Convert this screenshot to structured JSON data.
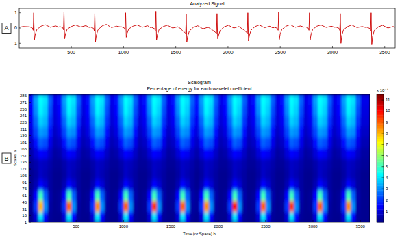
{
  "chart_data": [
    {
      "type": "line",
      "panel_label": "A",
      "title": "Analyzed Signal",
      "color": "#cc0000",
      "xlim": [
        1,
        3600
      ],
      "ylim": [
        -1.3,
        1.3
      ],
      "xticks": [
        500,
        1000,
        1500,
        2000,
        2500,
        3000,
        3500
      ],
      "yticks": [
        -1,
        0,
        1
      ],
      "x": [
        1,
        40,
        100,
        128,
        135,
        140,
        146,
        154,
        170,
        210,
        250,
        300,
        350,
        380,
        390,
        418,
        425,
        430,
        436,
        444,
        460,
        500,
        540,
        590,
        640,
        670,
        685,
        713,
        720,
        725,
        731,
        739,
        755,
        795,
        835,
        885,
        935,
        965,
        980,
        1008,
        1015,
        1020,
        1026,
        1034,
        1050,
        1090,
        1130,
        1180,
        1230,
        1260,
        1270,
        1298,
        1305,
        1310,
        1316,
        1324,
        1340,
        1380,
        1420,
        1470,
        1520,
        1550,
        1560,
        1588,
        1595,
        1600,
        1606,
        1614,
        1630,
        1670,
        1710,
        1760,
        1810,
        1840,
        1855,
        1883,
        1890,
        1895,
        1901,
        1909,
        1925,
        1965,
        2005,
        2055,
        2105,
        2135,
        2150,
        2178,
        2185,
        2190,
        2196,
        2204,
        2220,
        2260,
        2300,
        2350,
        2400,
        2430,
        2445,
        2473,
        2480,
        2485,
        2491,
        2499,
        2515,
        2555,
        2595,
        2645,
        2695,
        2725,
        2740,
        2768,
        2775,
        2780,
        2786,
        2794,
        2810,
        2850,
        2890,
        2940,
        2990,
        3020,
        3035,
        3063,
        3070,
        3075,
        3081,
        3089,
        3105,
        3145,
        3185,
        3235,
        3285,
        3315,
        3330,
        3358,
        3365,
        3370,
        3376,
        3384,
        3400,
        3440,
        3480,
        3530,
        3580,
        3600
      ],
      "values": [
        0.05,
        0.1,
        0.08,
        0.0,
        -0.15,
        1.0,
        -0.8,
        -0.45,
        -0.1,
        0.12,
        0.22,
        0.05,
        0.14,
        0.06,
        0.1,
        0.02,
        -0.12,
        1.05,
        -0.7,
        -0.4,
        -0.08,
        0.1,
        0.2,
        0.07,
        0.16,
        0.04,
        0.06,
        -0.02,
        -0.18,
        0.95,
        -0.9,
        -0.5,
        -0.12,
        0.14,
        0.24,
        0.03,
        0.12,
        0.08,
        0.08,
        0.0,
        -0.14,
        1.0,
        -0.6,
        -0.35,
        -0.06,
        0.12,
        0.2,
        0.05,
        0.15,
        0.02,
        0.04,
        -0.05,
        -0.2,
        1.1,
        -0.8,
        -0.45,
        -0.1,
        0.1,
        0.18,
        0.0,
        0.08,
        -0.05,
        -0.15,
        -0.3,
        -0.35,
        0.9,
        -0.9,
        -0.55,
        -0.2,
        0.05,
        0.15,
        -0.05,
        0.05,
        -0.08,
        -0.15,
        -0.3,
        -0.38,
        0.95,
        -0.7,
        -0.5,
        -0.15,
        0.08,
        0.18,
        0.0,
        0.1,
        -0.05,
        -0.12,
        -0.28,
        -0.35,
        1.0,
        -0.85,
        -0.5,
        -0.15,
        0.1,
        0.2,
        0.02,
        0.12,
        0.0,
        0.05,
        -0.02,
        -0.15,
        1.05,
        -0.75,
        -0.42,
        -0.1,
        0.12,
        0.22,
        0.05,
        0.14,
        0.06,
        0.08,
        0.0,
        -0.15,
        1.0,
        -0.8,
        -0.45,
        -0.1,
        0.12,
        0.2,
        0.04,
        0.12,
        0.05,
        0.06,
        -0.02,
        -0.16,
        0.95,
        -1.0,
        -0.5,
        -0.12,
        0.1,
        0.2,
        0.03,
        0.1,
        0.04,
        0.05,
        -0.03,
        -0.18,
        1.0,
        -1.1,
        -0.55,
        -0.15,
        0.08,
        0.18,
        0.0,
        0.1,
        0.05
      ]
    },
    {
      "type": "heatmap",
      "panel_label": "B",
      "title": "Scalogram",
      "subtitle": "Percentage of energy for each wavelet coefficient",
      "x_label": "Time (or Space) b",
      "y_label": "Scales a",
      "xlim": [
        0,
        3600
      ],
      "ylim": [
        1,
        289
      ],
      "xticks": [
        500,
        1000,
        1500,
        2000,
        2500,
        3000,
        3500
      ],
      "yticks": [
        1,
        16,
        31,
        46,
        61,
        76,
        91,
        106,
        121,
        136,
        151,
        166,
        181,
        196,
        211,
        226,
        241,
        256,
        271,
        286
      ],
      "x": [
        25,
        75,
        125,
        175,
        225,
        275,
        325,
        375,
        425,
        475,
        525,
        575,
        625,
        675,
        725,
        775,
        825,
        875,
        925,
        975,
        1025,
        1075,
        1125,
        1175,
        1225,
        1275,
        1325,
        1375,
        1425,
        1475,
        1525,
        1575,
        1625,
        1675,
        1725,
        1775,
        1825,
        1875,
        1925,
        1975,
        2025,
        2075,
        2125,
        2175,
        2225,
        2275,
        2325,
        2375,
        2425,
        2475,
        2525,
        2575,
        2625,
        2675,
        2725,
        2775,
        2825,
        2875,
        2925,
        2975,
        3025,
        3075,
        3125,
        3175,
        3225,
        3275,
        3325,
        3375,
        3425,
        3475,
        3525,
        3575
      ],
      "y": [
        13,
        37,
        61,
        85,
        109,
        133,
        157,
        181,
        205,
        229,
        253,
        277
      ],
      "cells": [
        [
          0.2,
          1,
          4,
          1.5,
          0.3,
          0.2,
          0.2,
          1,
          4,
          1.5,
          0.3,
          0.2,
          0.2,
          1,
          4,
          1.5,
          0.3,
          0.2,
          0.2,
          1,
          4,
          1.5,
          0.3,
          0.2,
          0.2,
          1,
          4,
          1.5,
          0.3,
          0.2,
          0.2,
          1,
          4,
          1.5,
          0.3,
          0.2,
          1,
          4,
          1.5,
          0.3,
          0.2,
          0.2,
          1,
          4,
          1.5,
          0.3,
          0.2,
          0.2,
          1,
          4,
          1.5,
          0.3,
          0.2,
          0.2,
          1,
          4,
          1.5,
          0.3,
          0.2,
          0.2,
          1,
          4,
          1.5,
          0.3,
          0.2,
          0.2,
          1,
          4,
          1.5,
          0.3,
          0.2,
          0.2
        ],
        [
          0.3,
          2,
          8,
          3,
          0.4,
          0.2,
          0.3,
          2,
          9,
          3,
          0.4,
          0.2,
          0.3,
          2,
          8.5,
          3,
          0.4,
          0.2,
          0.3,
          2,
          9,
          3,
          0.4,
          0.2,
          0.3,
          2,
          9.5,
          3,
          0.4,
          0.2,
          0.3,
          2,
          9,
          3,
          0.4,
          0.3,
          2,
          8.5,
          3,
          0.4,
          0.2,
          0.3,
          2,
          10,
          3,
          0.4,
          0.2,
          0.3,
          2,
          9,
          3,
          0.4,
          0.2,
          0.3,
          2,
          9.5,
          3,
          0.4,
          0.2,
          0.3,
          2,
          9,
          3,
          0.4,
          0.2,
          0.3,
          2,
          8.5,
          3,
          0.4,
          0.2,
          0.2
        ],
        [
          0.3,
          1.5,
          5,
          2.5,
          0.5,
          0.2,
          0.3,
          1.5,
          5,
          2.5,
          0.5,
          0.2,
          0.3,
          1.5,
          5,
          2.5,
          0.5,
          0.2,
          0.3,
          1.5,
          5,
          2.5,
          0.5,
          0.2,
          0.3,
          1.5,
          5,
          2.5,
          0.5,
          0.2,
          0.3,
          1.5,
          5,
          2.5,
          0.5,
          0.3,
          1.5,
          5,
          2.5,
          0.5,
          0.2,
          0.3,
          1.5,
          5,
          2.5,
          0.5,
          0.2,
          0.3,
          1.5,
          5,
          2.5,
          0.5,
          0.2,
          0.3,
          1.5,
          5,
          2.5,
          0.5,
          0.2,
          0.3,
          1.5,
          5,
          2.5,
          0.5,
          0.2,
          0.3,
          1.5,
          5,
          2.5,
          0.5,
          0.2,
          0.2
        ],
        [
          0.2,
          0.6,
          1.5,
          1,
          0.4,
          0.2,
          0.2,
          0.6,
          1.5,
          1,
          0.4,
          0.2,
          0.2,
          0.6,
          1.5,
          1,
          0.4,
          0.2,
          0.2,
          0.6,
          1.5,
          1,
          0.4,
          0.2,
          0.2,
          0.6,
          1.5,
          1,
          0.4,
          0.2,
          0.2,
          0.6,
          1.5,
          1,
          0.4,
          0.2,
          0.6,
          1.5,
          1,
          0.4,
          0.2,
          0.2,
          0.6,
          1.5,
          1,
          0.4,
          0.2,
          0.2,
          0.6,
          1.5,
          1,
          0.4,
          0.2,
          0.2,
          0.6,
          1.5,
          1,
          0.4,
          0.2,
          0.2,
          0.6,
          1.5,
          1,
          0.4,
          0.2,
          0.2,
          0.6,
          1.5,
          1,
          0.4,
          0.2,
          0.2
        ],
        [
          0.2,
          0.4,
          0.8,
          0.6,
          0.4,
          0.2,
          0.2,
          0.4,
          0.8,
          0.6,
          0.4,
          0.2,
          0.2,
          0.4,
          0.8,
          0.6,
          0.4,
          0.2,
          0.2,
          0.4,
          0.8,
          0.6,
          0.4,
          0.2,
          0.2,
          0.4,
          0.8,
          0.6,
          0.4,
          0.2,
          0.2,
          0.4,
          0.8,
          0.6,
          0.4,
          0.2,
          0.4,
          0.8,
          0.6,
          0.4,
          0.2,
          0.2,
          0.4,
          0.8,
          0.6,
          0.4,
          0.2,
          0.2,
          0.4,
          0.8,
          0.6,
          0.4,
          0.2,
          0.2,
          0.4,
          0.8,
          0.6,
          0.4,
          0.2,
          0.2,
          0.4,
          0.8,
          0.6,
          0.4,
          0.2,
          0.2,
          0.4,
          0.8,
          0.6,
          0.4,
          0.2,
          0.2
        ],
        [
          0.3,
          0.5,
          0.8,
          0.7,
          0.5,
          0.3,
          0.3,
          0.5,
          0.8,
          0.7,
          0.5,
          0.3,
          0.3,
          0.5,
          0.8,
          0.7,
          0.5,
          0.3,
          0.3,
          0.5,
          0.8,
          0.7,
          0.5,
          0.3,
          0.3,
          0.5,
          0.8,
          0.7,
          0.5,
          0.3,
          0.3,
          0.5,
          0.8,
          0.7,
          0.5,
          0.3,
          0.5,
          0.8,
          0.7,
          0.5,
          0.3,
          0.3,
          0.5,
          0.8,
          0.7,
          0.5,
          0.3,
          0.3,
          0.5,
          0.8,
          0.7,
          0.5,
          0.3,
          0.3,
          0.5,
          0.8,
          0.7,
          0.5,
          0.3,
          0.3,
          0.5,
          0.8,
          0.7,
          0.5,
          0.3,
          0.3,
          0.5,
          0.8,
          0.7,
          0.5,
          0.3,
          0.3
        ],
        [
          0.5,
          1,
          1.5,
          1.3,
          0.8,
          0.4,
          0.5,
          1,
          1.5,
          1.3,
          0.8,
          0.4,
          0.5,
          1,
          1.5,
          1.3,
          0.8,
          0.4,
          0.5,
          1,
          1.5,
          1.3,
          0.8,
          0.4,
          0.5,
          1,
          1.5,
          1.3,
          0.8,
          0.4,
          0.5,
          1,
          1.5,
          1.3,
          0.8,
          0.5,
          1,
          1.5,
          1.3,
          0.8,
          0.4,
          0.5,
          1,
          1.5,
          1.3,
          0.8,
          0.4,
          0.5,
          1,
          1.5,
          1.3,
          0.8,
          0.4,
          0.5,
          1,
          1.5,
          1.3,
          0.8,
          0.4,
          0.5,
          1,
          1.5,
          1.3,
          0.8,
          0.4,
          0.5,
          1,
          1.5,
          1.3,
          0.8,
          0.4,
          0.4
        ],
        [
          0.8,
          1.6,
          2.5,
          2.3,
          1.2,
          0.6,
          0.8,
          1.6,
          2.5,
          2.3,
          1.2,
          0.6,
          0.8,
          1.6,
          2.5,
          2.3,
          1.2,
          0.6,
          0.8,
          1.6,
          2.5,
          2.3,
          1.2,
          0.6,
          0.8,
          1.6,
          2.5,
          2.3,
          1.2,
          0.6,
          0.8,
          1.6,
          2.5,
          2.3,
          1.2,
          0.8,
          1.6,
          2.5,
          2.3,
          1.2,
          0.6,
          0.8,
          1.6,
          2.5,
          2.3,
          1.2,
          0.6,
          0.8,
          1.6,
          2.5,
          2.3,
          1.2,
          0.6,
          0.8,
          1.6,
          2.5,
          2.3,
          1.2,
          0.6,
          0.8,
          1.6,
          2.5,
          2.3,
          1.2,
          0.6,
          0.8,
          1.6,
          2.5,
          2.3,
          1.2,
          0.6,
          0.6
        ],
        [
          1.1,
          2.2,
          3.2,
          3,
          1.6,
          0.8,
          1.1,
          2.2,
          3.2,
          3,
          1.6,
          0.8,
          1.1,
          2.2,
          3.2,
          3,
          1.6,
          0.8,
          1.1,
          2.2,
          3.2,
          3,
          1.6,
          0.8,
          1.1,
          2.2,
          3.2,
          3,
          1.6,
          0.8,
          1.1,
          2.2,
          3.2,
          3,
          1.6,
          1.1,
          2.2,
          3.2,
          3,
          1.6,
          0.8,
          1.1,
          2.2,
          3.2,
          3,
          1.6,
          0.8,
          1.1,
          2.2,
          3.2,
          3,
          1.6,
          0.8,
          1.1,
          2.2,
          3.2,
          3,
          1.6,
          0.8,
          1.1,
          2.2,
          3.2,
          3,
          1.6,
          0.8,
          1.1,
          2.2,
          3.2,
          3,
          1.6,
          0.8,
          0.8
        ],
        [
          1.3,
          2.6,
          3.8,
          3.5,
          2,
          1,
          1.3,
          2.6,
          3.8,
          3.5,
          2,
          1,
          1.3,
          2.6,
          3.8,
          3.5,
          2,
          1,
          1.3,
          2.6,
          3.8,
          3.5,
          2,
          1,
          1.3,
          2.6,
          3.8,
          3.5,
          2,
          1,
          1.3,
          2.6,
          3.8,
          3.5,
          2,
          1.3,
          2.6,
          3.8,
          3.5,
          2,
          1,
          1.3,
          2.6,
          3.8,
          3.5,
          2,
          1,
          1.3,
          2.6,
          3.8,
          3.5,
          2,
          1,
          1.3,
          2.6,
          3.8,
          3.5,
          2,
          1,
          1.3,
          2.6,
          3.8,
          3.5,
          2,
          1,
          1.3,
          2.6,
          3.8,
          3.5,
          2,
          1,
          1
        ],
        [
          1.5,
          3,
          4.2,
          3.8,
          2.3,
          1.1,
          1.5,
          3,
          4.2,
          3.8,
          2.3,
          1.1,
          1.5,
          3,
          4.2,
          3.8,
          2.3,
          1.1,
          1.5,
          3,
          4.2,
          3.8,
          2.3,
          1.1,
          1.5,
          3,
          4.2,
          3.8,
          2.3,
          1.1,
          1.5,
          3,
          4.2,
          3.8,
          2.3,
          1.5,
          3,
          4.2,
          3.8,
          2.3,
          1.1,
          1.5,
          3,
          4.2,
          3.8,
          2.3,
          1.1,
          1.5,
          3,
          4.2,
          3.8,
          2.3,
          1.1,
          1.5,
          3,
          4.2,
          3.8,
          2.3,
          1.1,
          1.5,
          3,
          4.2,
          3.8,
          2.3,
          1.1,
          1.5,
          3,
          4.2,
          3.8,
          2.3,
          1.1,
          1.1
        ],
        [
          1.6,
          3.2,
          4.3,
          4,
          2.5,
          1.2,
          1.6,
          3.2,
          4.3,
          4,
          2.5,
          1.2,
          1.6,
          3.2,
          4.3,
          4,
          2.5,
          1.2,
          1.6,
          3.2,
          4.3,
          4,
          2.5,
          1.2,
          1.6,
          3.2,
          4.3,
          4,
          2.5,
          1.2,
          1.6,
          3.2,
          4.3,
          4,
          2.5,
          1.6,
          3.2,
          4.3,
          4,
          2.5,
          1.2,
          1.6,
          3.2,
          4.3,
          4,
          2.5,
          1.2,
          1.6,
          3.2,
          4.3,
          4,
          2.5,
          1.2,
          1.6,
          3.2,
          4.3,
          4,
          2.5,
          1.2,
          1.6,
          3.2,
          4.3,
          4,
          2.5,
          1.2,
          1.6,
          3.2,
          4.3,
          4,
          2.5,
          1.2,
          1.2
        ]
      ],
      "colorbar": {
        "label": "x 10⁻⁴",
        "range": [
          0,
          11.5
        ],
        "ticks": [
          1,
          2,
          3,
          4,
          5,
          6,
          7,
          8,
          9,
          10,
          11
        ]
      }
    }
  ]
}
